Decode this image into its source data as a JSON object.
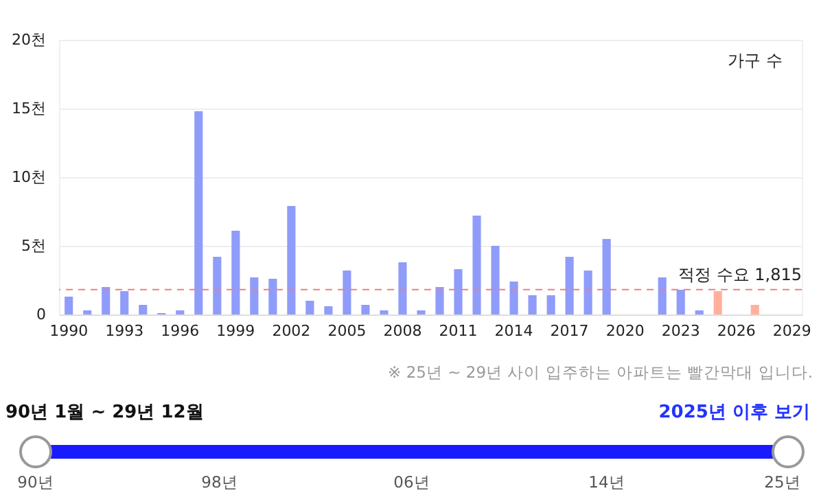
{
  "chart_data": {
    "type": "bar",
    "categories": [
      "1990",
      null,
      null,
      "1993",
      null,
      null,
      "1996",
      null,
      null,
      "1999",
      null,
      null,
      "2002",
      null,
      null,
      "2005",
      null,
      null,
      "2008",
      null,
      null,
      "2011",
      null,
      null,
      "2014",
      null,
      null,
      "2017",
      null,
      null,
      "2020",
      null,
      null,
      "2023",
      null,
      null,
      "2026",
      null,
      null,
      "2029"
    ],
    "values": [
      1.3,
      0.3,
      2.0,
      1.7,
      0.7,
      0.1,
      0.3,
      14.8,
      4.2,
      6.1,
      2.7,
      2.6,
      7.9,
      1.0,
      0.6,
      3.2,
      0.7,
      0.3,
      3.8,
      0.3,
      2.0,
      3.3,
      7.2,
      5.0,
      2.4,
      1.4,
      1.4,
      4.2,
      3.2,
      5.5,
      0,
      0,
      2.7,
      1.8,
      0.3,
      1.7,
      0,
      0.7,
      0,
      0
    ],
    "colors": [
      "#8f9cfa",
      "#8f9cfa",
      "#8f9cfa",
      "#8f9cfa",
      "#8f9cfa",
      "#8f9cfa",
      "#8f9cfa",
      "#8f9cfa",
      "#8f9cfa",
      "#8f9cfa",
      "#8f9cfa",
      "#8f9cfa",
      "#8f9cfa",
      "#8f9cfa",
      "#8f9cfa",
      "#8f9cfa",
      "#8f9cfa",
      "#8f9cfa",
      "#8f9cfa",
      "#8f9cfa",
      "#8f9cfa",
      "#8f9cfa",
      "#8f9cfa",
      "#8f9cfa",
      "#8f9cfa",
      "#8f9cfa",
      "#8f9cfa",
      "#8f9cfa",
      "#8f9cfa",
      "#8f9cfa",
      "#8f9cfa",
      "#8f9cfa",
      "#8f9cfa",
      "#8f9cfa",
      "#8f9cfa",
      "#ffb09c",
      "#ffb09c",
      "#ffb09c",
      "#ffb09c",
      "#ffb09c"
    ],
    "ylabel": "가구 수",
    "ylim": [
      0,
      20
    ],
    "yticks": [
      0,
      {
        "value": 5,
        "label": "5천"
      },
      {
        "value": 10,
        "label": "10천"
      },
      {
        "value": 15,
        "label": "15천"
      },
      {
        "value": 20,
        "label": "20천"
      }
    ],
    "grid": "y",
    "ref_lines": [
      {
        "axis": "y",
        "value": 1.815,
        "label": "적정 수요 1,815",
        "color": "#f08080",
        "line_style": "dashed"
      }
    ],
    "annotations": [
      "※ 25년 ~ 29년 사이 입주하는 아파트는 빨간막대 입니다.",
      "90년 1월 ~ 29년 12월",
      "2025년 이후 보기",
      "90년",
      "98년",
      "06년",
      "14년",
      "25년"
    ]
  }
}
